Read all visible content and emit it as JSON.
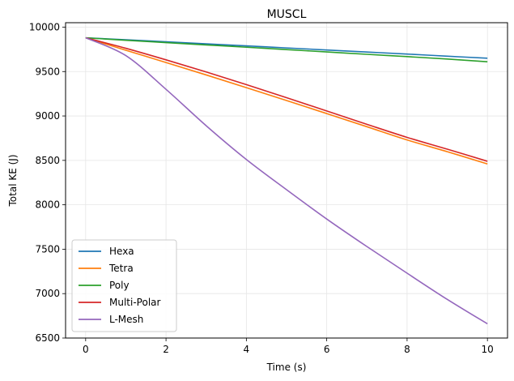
{
  "chart_data": {
    "type": "line",
    "title": "MUSCL",
    "xlabel": "Time (s)",
    "ylabel": "Total KE (J)",
    "xlim": [
      -0.5,
      10.5
    ],
    "ylim": [
      6500,
      10050
    ],
    "xticks": [
      0,
      2,
      4,
      6,
      8,
      10
    ],
    "yticks": [
      6500,
      7000,
      7500,
      8000,
      8500,
      9000,
      9500,
      10000
    ],
    "grid": true,
    "legend_position": "lower-left",
    "x": [
      0,
      1,
      2,
      3,
      4,
      5,
      6,
      7,
      8,
      9,
      10
    ],
    "series": [
      {
        "name": "Hexa",
        "color": "#1f77b4",
        "values": [
          9880,
          9858,
          9835,
          9812,
          9789,
          9766,
          9743,
          9720,
          9697,
          9673,
          9650
        ]
      },
      {
        "name": "Tetra",
        "color": "#ff7f0e",
        "values": [
          9880,
          9740,
          9602,
          9462,
          9319,
          9174,
          9027,
          8879,
          8730,
          8598,
          8460
        ]
      },
      {
        "name": "Poly",
        "color": "#2ca02c",
        "values": [
          9880,
          9852,
          9826,
          9800,
          9774,
          9747,
          9721,
          9694,
          9668,
          9641,
          9610
        ]
      },
      {
        "name": "Multi-Polar",
        "color": "#d62728",
        "values": [
          9880,
          9762,
          9632,
          9496,
          9353,
          9206,
          9056,
          8906,
          8759,
          8626,
          8490
        ]
      },
      {
        "name": "L-Mesh",
        "color": "#9467bd",
        "values": [
          9880,
          9680,
          9300,
          8890,
          8510,
          8170,
          7840,
          7530,
          7230,
          6935,
          6660
        ]
      }
    ]
  }
}
